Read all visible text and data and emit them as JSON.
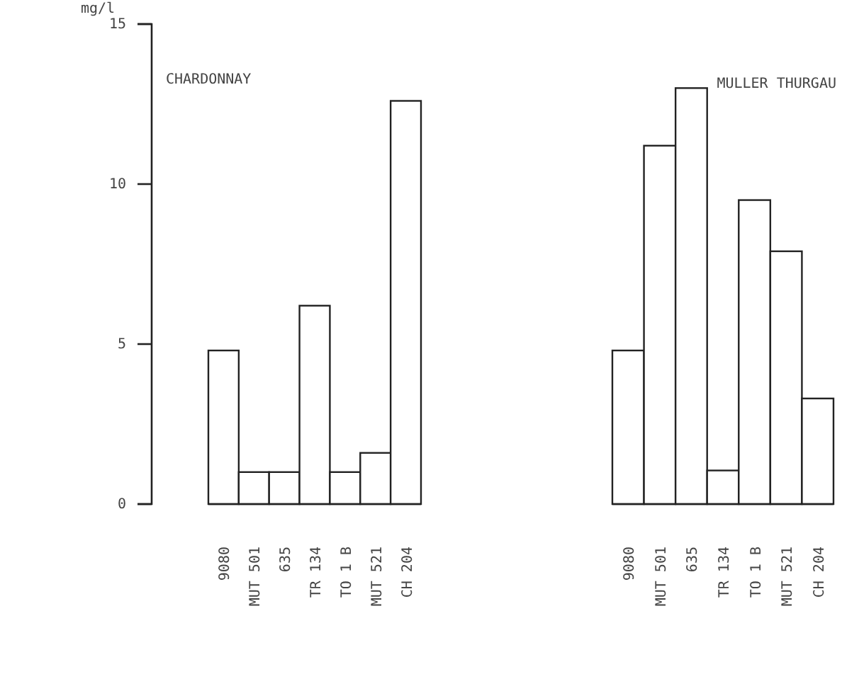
{
  "chart_data": [
    {
      "type": "bar",
      "title": "CHARDONNAY",
      "ylabel": "mg/l",
      "categories": [
        "9080",
        "MUT 501",
        "635",
        "TR 134",
        "TO 1 B",
        "MUT 521",
        "CH 204"
      ],
      "values": [
        4.8,
        1.0,
        1.0,
        6.2,
        1.0,
        1.6,
        12.6
      ],
      "color": "#ffffff",
      "ylim": [
        0,
        15
      ],
      "yticks": [
        0,
        5,
        10,
        15
      ],
      "grid": false
    },
    {
      "type": "bar",
      "title": "MULLER THURGAU",
      "categories": [
        "9080",
        "MUT 501",
        "635",
        "TR 134",
        "TO 1 B",
        "MUT 521",
        "CH 204"
      ],
      "values": [
        4.8,
        11.2,
        13.0,
        1.05,
        9.5,
        7.9,
        3.3
      ],
      "color": "#ffffff",
      "ylim": [
        0,
        15
      ],
      "tick_labels": "x",
      "grid": false
    }
  ]
}
